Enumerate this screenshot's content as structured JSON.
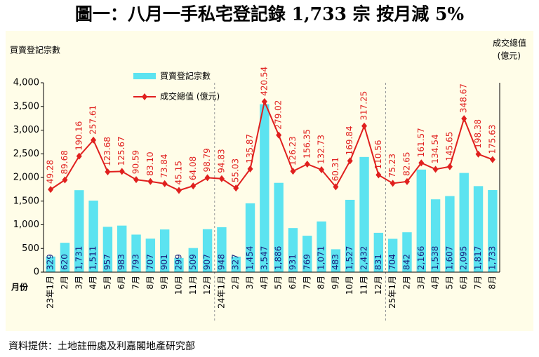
{
  "chart_data": {
    "type": "bar-line",
    "title": "圖一：八月一手私宅登記錄 1,733 宗  按月減 5%",
    "y_label": "買賣登記宗數",
    "y2_label": [
      "成交總值",
      "(億元)"
    ],
    "x_label": "月份",
    "source": "資料提供：土地註冊處及利嘉閣地產研究部",
    "categories": [
      "23年1月",
      "2月",
      "3月",
      "4月",
      "5月",
      "6月",
      "7月",
      "8月",
      "9月",
      "10月",
      "11月",
      "12月",
      "24年1月",
      "2月",
      "3月",
      "4月",
      "5月",
      "6月",
      "7月",
      "8月",
      "9月",
      "10月",
      "11月",
      "12月",
      "25年1月",
      "2月",
      "3月",
      "4月",
      "5月",
      "6月",
      "7月",
      "8月"
    ],
    "series": [
      {
        "name": "買賣登記宗數",
        "type": "bar",
        "color": "#5ce3f0",
        "values": [
          329,
          620,
          1731,
          1511,
          957,
          983,
          793,
          707,
          901,
          299,
          509,
          907,
          948,
          327,
          1454,
          3547,
          1886,
          931,
          769,
          1071,
          483,
          1527,
          2432,
          831,
          704,
          842,
          2166,
          1538,
          1607,
          2095,
          1817,
          1733
        ],
        "value_labels": [
          "329",
          "620",
          "1,731",
          "1,511",
          "957",
          "983",
          "793",
          "707",
          "901",
          "299",
          "509",
          "907",
          "948",
          "327",
          "1,454",
          "3,547",
          "1,886",
          "931",
          "769",
          "1,071",
          "483",
          "1,527",
          "2,432",
          "831",
          "704",
          "842",
          "2,166",
          "1,538",
          "1,607",
          "2,095",
          "1,817",
          "1,733"
        ]
      },
      {
        "name": "成交總值 (億元)",
        "type": "line",
        "axis": "y2",
        "color": "#e0201e",
        "values": [
          49.28,
          89.68,
          190.16,
          257.61,
          123.68,
          125.67,
          90.59,
          83.1,
          73.84,
          45.15,
          64.08,
          98.79,
          94.83,
          55.03,
          135.87,
          420.54,
          279.02,
          126.23,
          156.35,
          132.73,
          60.31,
          169.84,
          317.25,
          110.56,
          75.23,
          82.65,
          161.57,
          134.54,
          145.65,
          348.67,
          198.38,
          175.63
        ],
        "value_labels": [
          "49.28",
          "89.68",
          "190.16",
          "257.61",
          "123.68",
          "125.67",
          "90.59",
          "83.10",
          "73.84",
          "45.15",
          "64.08",
          "98.79",
          "94.83",
          "55.03",
          "135.87",
          "420.54",
          "279.02",
          "126.23",
          "156.35",
          "132.73",
          "60.31",
          "169.84",
          "317.25",
          "110.56",
          "75.23",
          "82.65",
          "161.57",
          "134.54",
          "145.65",
          "348.67",
          "198.38",
          "175.63"
        ]
      }
    ],
    "ylim": [
      0,
      4000
    ],
    "yticks": [
      0,
      500,
      {
        "value": 1000,
        "label": "1,000"
      },
      {
        "value": 1500,
        "label": "1,500"
      },
      {
        "value": 2000,
        "label": "2,000"
      },
      {
        "value": 2500,
        "label": "2,500"
      },
      {
        "value": 3000,
        "label": "3,000"
      },
      {
        "value": 3500,
        "label": "3,500"
      },
      {
        "value": 4000,
        "label": "4,000"
      }
    ],
    "y2lim": [
      -300,
      500
    ]
  }
}
